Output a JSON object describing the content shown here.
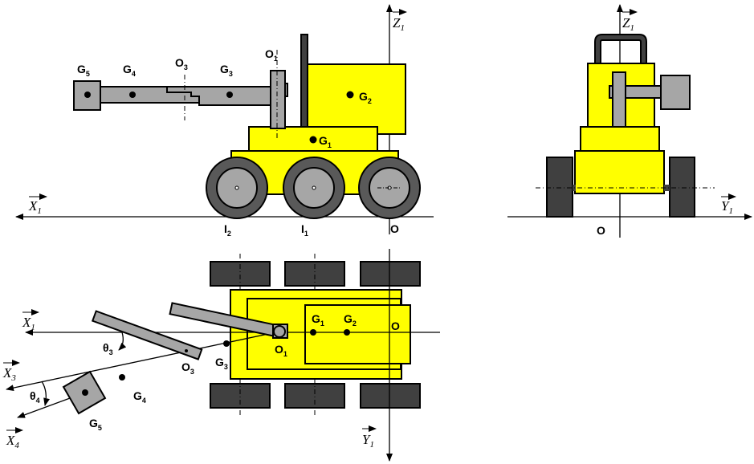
{
  "colors": {
    "body": "#ffff00",
    "arm": "#a6a6a6",
    "tire": "#595959",
    "track": "#404040",
    "hub": "#a6a6a6",
    "outline": "#000000"
  },
  "side_view": {
    "axis_x": "X",
    "axis_x_sub": "1",
    "axis_z": "Z",
    "axis_z_sub": "1",
    "origin": "O",
    "labels": {
      "g5": "G",
      "g5_sub": "5",
      "g4": "G",
      "g4_sub": "4",
      "o3": "O",
      "o3_sub": "3",
      "g3": "G",
      "g3_sub": "3",
      "o1": "O",
      "o1_sub": "1",
      "g2": "G",
      "g2_sub": "2",
      "g1": "G",
      "g1_sub": "1",
      "i2": "I",
      "i2_sub": "2",
      "i1": "I",
      "i1_sub": "1"
    }
  },
  "front_view": {
    "axis_z": "Z",
    "axis_z_sub": "1",
    "axis_y": "Y",
    "axis_y_sub": "1",
    "origin": "O"
  },
  "top_view": {
    "axis_x1": "X",
    "axis_x1_sub": "1",
    "axis_x3": "X",
    "axis_x3_sub": "3",
    "axis_x4": "X",
    "axis_x4_sub": "4",
    "axis_y1": "Y",
    "axis_y1_sub": "1",
    "theta3": "θ",
    "theta3_sub": "3",
    "theta4": "θ",
    "theta4_sub": "4",
    "origin": "O",
    "labels": {
      "g1": "G",
      "g1_sub": "1",
      "g2": "G",
      "g2_sub": "2",
      "o1": "O",
      "o1_sub": "1",
      "o3": "O",
      "o3_sub": "3",
      "g3": "G",
      "g3_sub": "3",
      "g4": "G",
      "g4_sub": "4",
      "g5": "G",
      "g5_sub": "5"
    }
  }
}
